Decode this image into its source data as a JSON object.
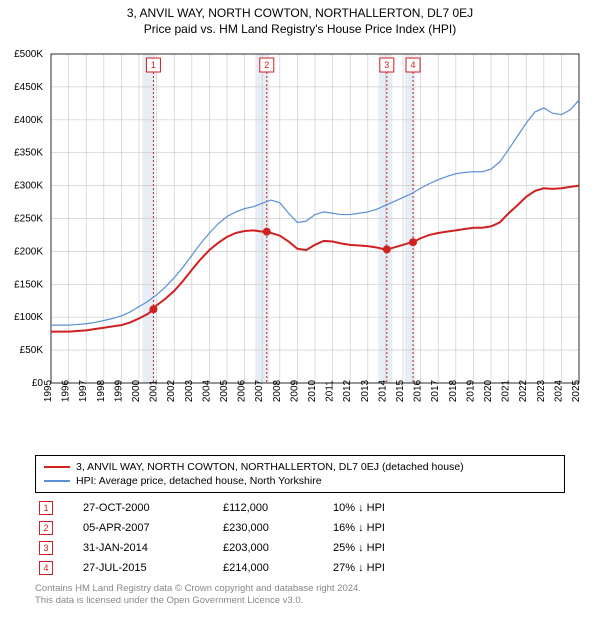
{
  "title_line1": "3, ANVIL WAY, NORTH COWTON, NORTHALLERTON, DL7 0EJ",
  "title_line2": "Price paid vs. HM Land Registry's House Price Index (HPI)",
  "chart": {
    "type": "line",
    "background_color": "#ffffff",
    "plot_bg": "#ffffff",
    "grid_color": "#cccccc",
    "ylim": [
      0,
      500000
    ],
    "ytick_step": 50000,
    "y_ticks": [
      "£0",
      "£50K",
      "£100K",
      "£150K",
      "£200K",
      "£250K",
      "£300K",
      "£350K",
      "£400K",
      "£450K",
      "£500K"
    ],
    "x_years": [
      1995,
      1996,
      1997,
      1998,
      1999,
      2000,
      2001,
      2002,
      2003,
      2004,
      2005,
      2006,
      2007,
      2008,
      2009,
      2010,
      2011,
      2012,
      2013,
      2014,
      2015,
      2016,
      2017,
      2018,
      2019,
      2020,
      2021,
      2022,
      2023,
      2024,
      2025
    ],
    "highlight_bands": [
      {
        "start": 2000.2,
        "end": 2000.9,
        "color": "#e6edf5"
      },
      {
        "start": 2006.6,
        "end": 2007.4,
        "color": "#e6edf5"
      },
      {
        "start": 2013.6,
        "end": 2014.4,
        "color": "#e6edf5"
      },
      {
        "start": 2015.1,
        "end": 2015.7,
        "color": "#e6edf5"
      }
    ],
    "event_lines": [
      {
        "x": 2000.82,
        "label": "1",
        "color": "#d02020"
      },
      {
        "x": 2007.26,
        "label": "2",
        "color": "#d02020"
      },
      {
        "x": 2014.08,
        "label": "3",
        "color": "#d02020"
      },
      {
        "x": 2015.57,
        "label": "4",
        "color": "#d02020"
      }
    ],
    "series": [
      {
        "name": "property",
        "color": "#d02020",
        "width": 2,
        "points": [
          [
            1995.0,
            78000
          ],
          [
            1995.5,
            78000
          ],
          [
            1996.0,
            78000
          ],
          [
            1996.5,
            79000
          ],
          [
            1997.0,
            80000
          ],
          [
            1997.5,
            82000
          ],
          [
            1998.0,
            84000
          ],
          [
            1998.5,
            86000
          ],
          [
            1999.0,
            88000
          ],
          [
            1999.5,
            92000
          ],
          [
            2000.0,
            98000
          ],
          [
            2000.5,
            105000
          ],
          [
            2000.82,
            112000
          ],
          [
            2001.0,
            118000
          ],
          [
            2001.5,
            128000
          ],
          [
            2002.0,
            140000
          ],
          [
            2002.5,
            155000
          ],
          [
            2003.0,
            172000
          ],
          [
            2003.5,
            188000
          ],
          [
            2004.0,
            202000
          ],
          [
            2004.5,
            213000
          ],
          [
            2005.0,
            222000
          ],
          [
            2005.5,
            228000
          ],
          [
            2006.0,
            231000
          ],
          [
            2006.5,
            232000
          ],
          [
            2007.0,
            230000
          ],
          [
            2007.26,
            230000
          ],
          [
            2007.5,
            228000
          ],
          [
            2008.0,
            224000
          ],
          [
            2008.5,
            215000
          ],
          [
            2009.0,
            204000
          ],
          [
            2009.5,
            202000
          ],
          [
            2010.0,
            210000
          ],
          [
            2010.5,
            216000
          ],
          [
            2011.0,
            215000
          ],
          [
            2011.5,
            212000
          ],
          [
            2012.0,
            210000
          ],
          [
            2012.5,
            209000
          ],
          [
            2013.0,
            208000
          ],
          [
            2013.5,
            206000
          ],
          [
            2014.0,
            203000
          ],
          [
            2014.08,
            203000
          ],
          [
            2014.5,
            206000
          ],
          [
            2015.0,
            210000
          ],
          [
            2015.5,
            214000
          ],
          [
            2015.57,
            214000
          ],
          [
            2016.0,
            220000
          ],
          [
            2016.5,
            225000
          ],
          [
            2017.0,
            228000
          ],
          [
            2017.5,
            230000
          ],
          [
            2018.0,
            232000
          ],
          [
            2018.5,
            234000
          ],
          [
            2019.0,
            236000
          ],
          [
            2019.5,
            236000
          ],
          [
            2020.0,
            238000
          ],
          [
            2020.5,
            244000
          ],
          [
            2021.0,
            258000
          ],
          [
            2021.5,
            270000
          ],
          [
            2022.0,
            283000
          ],
          [
            2022.5,
            292000
          ],
          [
            2023.0,
            296000
          ],
          [
            2023.5,
            295000
          ],
          [
            2024.0,
            296000
          ],
          [
            2024.5,
            298000
          ],
          [
            2025.0,
            300000
          ]
        ],
        "markers": [
          {
            "x": 2000.82,
            "y": 112000
          },
          {
            "x": 2007.26,
            "y": 230000
          },
          {
            "x": 2014.08,
            "y": 203000
          },
          {
            "x": 2015.57,
            "y": 214000
          }
        ]
      },
      {
        "name": "hpi",
        "color": "#5b8fd6",
        "width": 1.2,
        "points": [
          [
            1995.0,
            88000
          ],
          [
            1995.5,
            88000
          ],
          [
            1996.0,
            88000
          ],
          [
            1996.5,
            89000
          ],
          [
            1997.0,
            90000
          ],
          [
            1997.5,
            92000
          ],
          [
            1998.0,
            95000
          ],
          [
            1998.5,
            98000
          ],
          [
            1999.0,
            102000
          ],
          [
            1999.5,
            108000
          ],
          [
            2000.0,
            116000
          ],
          [
            2000.5,
            124000
          ],
          [
            2001.0,
            134000
          ],
          [
            2001.5,
            146000
          ],
          [
            2002.0,
            160000
          ],
          [
            2002.5,
            176000
          ],
          [
            2003.0,
            194000
          ],
          [
            2003.5,
            212000
          ],
          [
            2004.0,
            228000
          ],
          [
            2004.5,
            242000
          ],
          [
            2005.0,
            253000
          ],
          [
            2005.5,
            260000
          ],
          [
            2006.0,
            265000
          ],
          [
            2006.5,
            268000
          ],
          [
            2007.0,
            273000
          ],
          [
            2007.5,
            278000
          ],
          [
            2008.0,
            274000
          ],
          [
            2008.5,
            258000
          ],
          [
            2009.0,
            244000
          ],
          [
            2009.5,
            246000
          ],
          [
            2010.0,
            256000
          ],
          [
            2010.5,
            260000
          ],
          [
            2011.0,
            258000
          ],
          [
            2011.5,
            256000
          ],
          [
            2012.0,
            256000
          ],
          [
            2012.5,
            258000
          ],
          [
            2013.0,
            260000
          ],
          [
            2013.5,
            264000
          ],
          [
            2014.0,
            270000
          ],
          [
            2014.5,
            276000
          ],
          [
            2015.0,
            282000
          ],
          [
            2015.5,
            288000
          ],
          [
            2016.0,
            296000
          ],
          [
            2016.5,
            303000
          ],
          [
            2017.0,
            309000
          ],
          [
            2017.5,
            314000
          ],
          [
            2018.0,
            318000
          ],
          [
            2018.5,
            320000
          ],
          [
            2019.0,
            321000
          ],
          [
            2019.5,
            321000
          ],
          [
            2020.0,
            325000
          ],
          [
            2020.5,
            336000
          ],
          [
            2021.0,
            355000
          ],
          [
            2021.5,
            375000
          ],
          [
            2022.0,
            395000
          ],
          [
            2022.5,
            412000
          ],
          [
            2023.0,
            418000
          ],
          [
            2023.5,
            410000
          ],
          [
            2024.0,
            408000
          ],
          [
            2024.5,
            415000
          ],
          [
            2025.0,
            430000
          ]
        ]
      }
    ]
  },
  "legend": {
    "items": [
      {
        "color": "#d02020",
        "width": 2,
        "label": "3, ANVIL WAY, NORTH COWTON, NORTHALLERTON, DL7 0EJ (detached house)"
      },
      {
        "color": "#5b8fd6",
        "width": 1,
        "label": "HPI: Average price, detached house, North Yorkshire"
      }
    ]
  },
  "transactions": {
    "marker_color": "#d02020",
    "hpi_suffix": "HPI",
    "rows": [
      {
        "num": "1",
        "date": "27-OCT-2000",
        "price": "£112,000",
        "pct": "10%",
        "dir": "↓"
      },
      {
        "num": "2",
        "date": "05-APR-2007",
        "price": "£230,000",
        "pct": "16%",
        "dir": "↓"
      },
      {
        "num": "3",
        "date": "31-JAN-2014",
        "price": "£203,000",
        "pct": "25%",
        "dir": "↓"
      },
      {
        "num": "4",
        "date": "27-JUL-2015",
        "price": "£214,000",
        "pct": "27%",
        "dir": "↓"
      }
    ]
  },
  "footer_line1": "Contains HM Land Registry data © Crown copyright and database right 2024.",
  "footer_line2": "This data is licensed under the Open Government Licence v3.0."
}
